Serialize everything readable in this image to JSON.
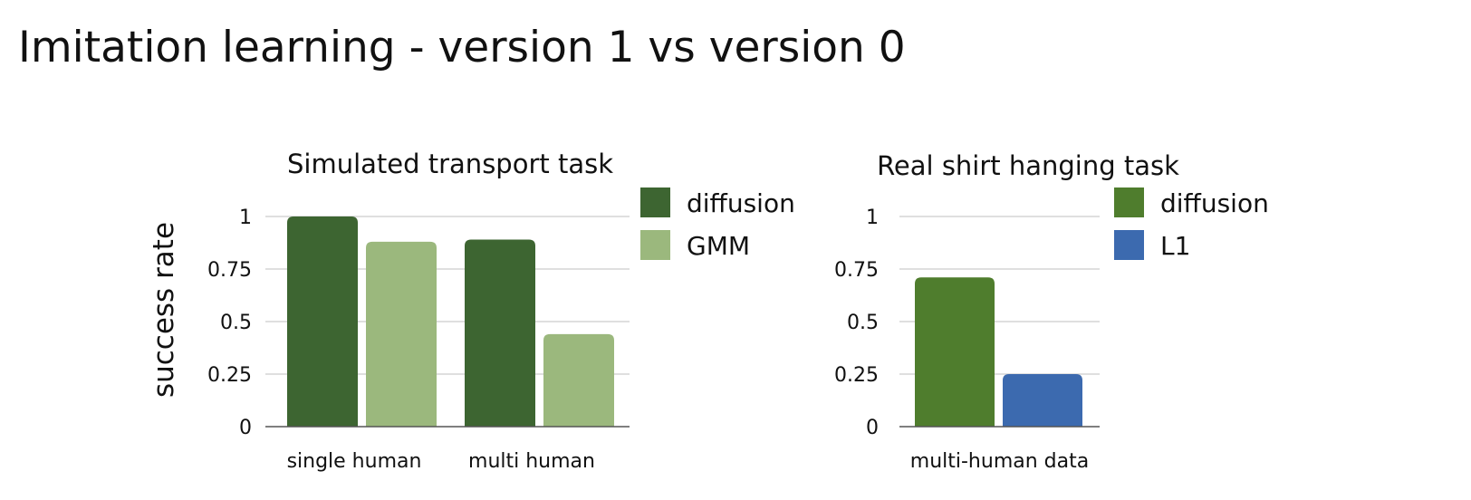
{
  "page": {
    "title": "Imitation learning - version 1 vs version 0"
  },
  "chart_data": [
    {
      "type": "bar",
      "title": "Simulated transport task",
      "ylabel": "success rate",
      "xlabel": "",
      "ylim": [
        0,
        1
      ],
      "yticks": [
        "0",
        "0.25",
        "0.5",
        "0.75",
        "1"
      ],
      "grid": true,
      "legend_position": "right",
      "categories": [
        "single human",
        "multi human"
      ],
      "series": [
        {
          "name": "diffusion",
          "color": "#3d6531",
          "values": [
            1.0,
            0.89
          ]
        },
        {
          "name": "GMM",
          "color": "#9bb87d",
          "values": [
            0.88,
            0.44
          ]
        }
      ]
    },
    {
      "type": "bar",
      "title": "Real shirt hanging task",
      "ylabel": "",
      "xlabel": "",
      "ylim": [
        0,
        1
      ],
      "yticks": [
        "0",
        "0.25",
        "0.5",
        "0.75",
        "1"
      ],
      "grid": true,
      "legend_position": "right",
      "categories": [
        "multi-human data"
      ],
      "series": [
        {
          "name": "diffusion",
          "color": "#4f7d2d",
          "values": [
            0.71
          ]
        },
        {
          "name": "L1",
          "color": "#3c6aaf",
          "values": [
            0.25
          ]
        }
      ]
    }
  ]
}
